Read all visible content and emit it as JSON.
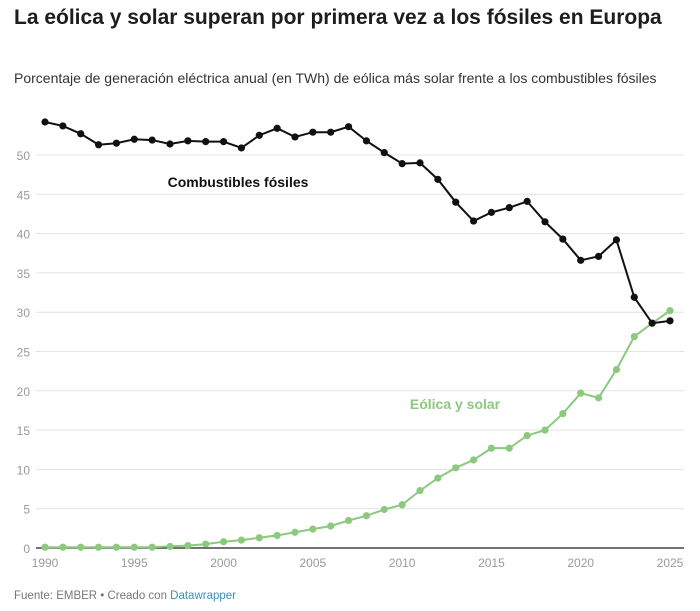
{
  "title": "La eólica y solar superan por primera vez a los fósiles en Europa",
  "subtitle": "Porcentaje de generación eléctrica anual (en TWh) de eólica más solar frente a los combustibles fósiles",
  "footer": {
    "source": "Fuente: EMBER • Creado con ",
    "tool_link": "Datawrapper"
  },
  "chart_data": {
    "type": "line",
    "title": "La eólica y solar superan por primera vez a los fósiles en Europa",
    "xlabel": "",
    "ylabel": "",
    "xlim": [
      1990,
      2025
    ],
    "ylim": [
      0,
      55
    ],
    "grid": true,
    "x_ticks": [
      "1990",
      "1995",
      "2000",
      "2005",
      "2010",
      "2015",
      "2020",
      "2025"
    ],
    "y_ticks": [
      "0",
      "5",
      "10",
      "15",
      "20",
      "25",
      "30",
      "35",
      "40",
      "45",
      "50"
    ],
    "x": [
      1990,
      1991,
      1992,
      1993,
      1994,
      1995,
      1996,
      1997,
      1998,
      1999,
      2000,
      2001,
      2002,
      2003,
      2004,
      2005,
      2006,
      2007,
      2008,
      2009,
      2010,
      2011,
      2012,
      2013,
      2014,
      2015,
      2016,
      2017,
      2018,
      2019,
      2020,
      2021,
      2022,
      2023,
      2024,
      2025
    ],
    "series": [
      {
        "name": "Combustibles fósiles",
        "color": "#111111",
        "values": [
          54.2,
          53.7,
          52.7,
          51.3,
          51.5,
          52.0,
          51.9,
          51.4,
          51.8,
          51.7,
          51.7,
          50.9,
          52.5,
          53.4,
          52.3,
          52.9,
          52.9,
          53.6,
          51.8,
          50.3,
          48.9,
          49.0,
          46.9,
          44.0,
          41.6,
          42.7,
          43.3,
          44.1,
          41.5,
          39.3,
          36.6,
          37.1,
          39.2,
          31.9,
          28.6,
          28.9
        ]
      },
      {
        "name": "Eólica y solar",
        "color": "#8cc97e",
        "values": [
          0.1,
          0.1,
          0.1,
          0.1,
          0.1,
          0.1,
          0.1,
          0.2,
          0.3,
          0.5,
          0.8,
          1.0,
          1.3,
          1.6,
          2.0,
          2.4,
          2.8,
          3.5,
          4.1,
          4.9,
          5.5,
          7.3,
          8.9,
          10.2,
          11.2,
          12.7,
          12.7,
          14.3,
          15.0,
          17.1,
          19.7,
          19.1,
          22.7,
          26.9,
          28.6,
          30.2
        ]
      }
    ]
  }
}
